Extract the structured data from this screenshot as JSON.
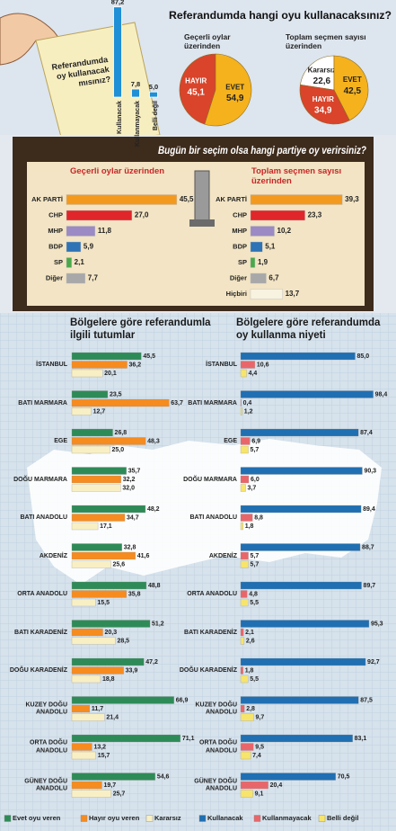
{
  "chart_data": [
    {
      "type": "column",
      "title": "Referandumda oy kullanacak mısınız?",
      "categories": [
        "Kullanacak",
        "Kullanmayacak",
        "Belli değil"
      ],
      "values": [
        87.2,
        7.8,
        5.0
      ],
      "value_labels": [
        "87,2",
        "7,8",
        "5,0"
      ],
      "color": "#1f8fd6"
    },
    {
      "type": "pie",
      "title": "Referandumda hangi oyu kullanacaksınız?",
      "subtitle": "Geçerli oylar üzerinden",
      "categories": [
        "HAYIR",
        "EVET"
      ],
      "values": [
        45.1,
        54.9
      ],
      "value_labels": [
        "45,1",
        "54,9"
      ],
      "colors": [
        "#d9442b",
        "#f5b21c"
      ]
    },
    {
      "type": "pie",
      "subtitle": "Toplam seçmen sayısı üzerinden",
      "categories": [
        "Kararsız",
        "EVET",
        "HAYIR"
      ],
      "values": [
        22.6,
        42.5,
        34.9
      ],
      "value_labels": [
        "22,6",
        "42,5",
        "34,9"
      ],
      "colors": [
        "#ffffff",
        "#f5b21c",
        "#d9442b"
      ]
    },
    {
      "type": "bar",
      "title": "Bugün bir seçim olsa hangi partiye oy verirsiniz?",
      "subtitle": "Geçerli oylar üzerinden",
      "categories": [
        "AK PARTİ",
        "CHP",
        "MHP",
        "BDP",
        "SP",
        "Diğer"
      ],
      "values": [
        45.5,
        27.0,
        11.8,
        5.9,
        2.1,
        7.7
      ],
      "value_labels": [
        "45,5",
        "27,0",
        "11,8",
        "5,9",
        "2,1",
        "7,7"
      ],
      "colors": [
        "#f39a1e",
        "#e0262a",
        "#9b8ac4",
        "#2d73b5",
        "#4aa84a",
        "#a8a8a8"
      ]
    },
    {
      "type": "bar",
      "subtitle": "Toplam seçmen sayısı üzerinden",
      "categories": [
        "AK PARTİ",
        "CHP",
        "MHP",
        "BDP",
        "SP",
        "Diğer",
        "Hiçbiri"
      ],
      "values": [
        39.3,
        23.3,
        10.2,
        5.1,
        1.9,
        6.7,
        13.7
      ],
      "value_labels": [
        "39,3",
        "23,3",
        "10,2",
        "5,1",
        "1,9",
        "6,7",
        "13,7"
      ],
      "colors": [
        "#f39a1e",
        "#e0262a",
        "#9b8ac4",
        "#2d73b5",
        "#4aa84a",
        "#a8a8a8",
        "#f8f2e0"
      ]
    },
    {
      "type": "bar",
      "title": "Bölgelere göre referandumla ilgili tutumlar",
      "categories": [
        "İSTANBUL",
        "BATI MARMARA",
        "EGE",
        "DOĞU MARMARA",
        "BATI ANADOLU",
        "AKDENİZ",
        "ORTA ANADOLU",
        "BATI KARADENİZ",
        "DOĞU KARADENİZ",
        "KUZEY DOĞU ANADOLU",
        "ORTA DOĞU ANADOLU",
        "GÜNEY DOĞU ANADOLU"
      ],
      "series": [
        {
          "name": "Evet oyu veren",
          "color": "#2e8b57",
          "values": [
            45.5,
            23.5,
            26.8,
            35.7,
            48.2,
            32.8,
            48.8,
            51.2,
            47.2,
            66.9,
            71.1,
            54.6
          ],
          "value_labels": [
            "45,5",
            "23,5",
            "26,8",
            "35,7",
            "48,2",
            "32,8",
            "48,8",
            "51,2",
            "47,2",
            "66,9",
            "71,1",
            "54,6"
          ]
        },
        {
          "name": "Hayır oyu veren",
          "color": "#f68b1f",
          "values": [
            36.2,
            63.7,
            48.3,
            32.2,
            34.7,
            41.6,
            35.8,
            20.3,
            33.9,
            11.7,
            13.2,
            19.7
          ],
          "value_labels": [
            "36,2",
            "63,7",
            "48,3",
            "32,2",
            "34,7",
            "41,6",
            "35,8",
            "20,3",
            "33,9",
            "11,7",
            "13,2",
            "19,7"
          ]
        },
        {
          "name": "Kararsız",
          "color": "#f8efc4",
          "values": [
            20.1,
            12.7,
            25.0,
            32.0,
            17.1,
            25.6,
            15.5,
            28.5,
            18.8,
            21.4,
            15.7,
            25.7
          ],
          "value_labels": [
            "20,1",
            "12,7",
            "25,0",
            "32,0",
            "17,1",
            "25,6",
            "15,5",
            "28,5",
            "18,8",
            "21,4",
            "15,7",
            "25,7"
          ]
        }
      ]
    },
    {
      "type": "bar",
      "title": "Bölgelere göre referandumda oy kullanma niyeti",
      "categories": [
        "İSTANBUL",
        "BATI MARMARA",
        "EGE",
        "DOĞU MARMARA",
        "BATI ANADOLU",
        "AKDENİZ",
        "ORTA ANADOLU",
        "BATI KARADENİZ",
        "DOĞU KARADENİZ",
        "KUZEY DOĞU ANADOLU",
        "ORTA DOĞU ANADOLU",
        "GÜNEY DOĞU ANADOLU"
      ],
      "series": [
        {
          "name": "Kullanacak",
          "color": "#1f6fb2",
          "values": [
            85.0,
            98.4,
            87.4,
            90.3,
            89.4,
            88.7,
            89.7,
            95.3,
            92.7,
            87.5,
            83.1,
            70.5
          ],
          "value_labels": [
            "85,0",
            "98,4",
            "87,4",
            "90,3",
            "89,4",
            "88,7",
            "89,7",
            "95,3",
            "92,7",
            "87,5",
            "83,1",
            "70,5"
          ]
        },
        {
          "name": "Kullanmayacak",
          "color": "#e8666a",
          "values": [
            10.6,
            0.4,
            6.9,
            6.0,
            8.8,
            5.7,
            4.8,
            2.1,
            1.8,
            2.8,
            9.5,
            20.4
          ],
          "value_labels": [
            "10,6",
            "0,4",
            "6,9",
            "6,0",
            "8,8",
            "5,7",
            "4,8",
            "2,1",
            "1,8",
            "2,8",
            "9,5",
            "20,4"
          ]
        },
        {
          "name": "Belli değil",
          "color": "#f7e46b",
          "values": [
            4.4,
            1.2,
            5.7,
            3.7,
            1.8,
            5.7,
            5.5,
            2.6,
            5.5,
            9.7,
            7.4,
            9.1
          ],
          "value_labels": [
            "4,4",
            "1,2",
            "5,7",
            "3,7",
            "1,8",
            "5,7",
            "5,5",
            "2,6",
            "5,5",
            "9,7",
            "7,4",
            "9,1"
          ]
        }
      ]
    }
  ]
}
